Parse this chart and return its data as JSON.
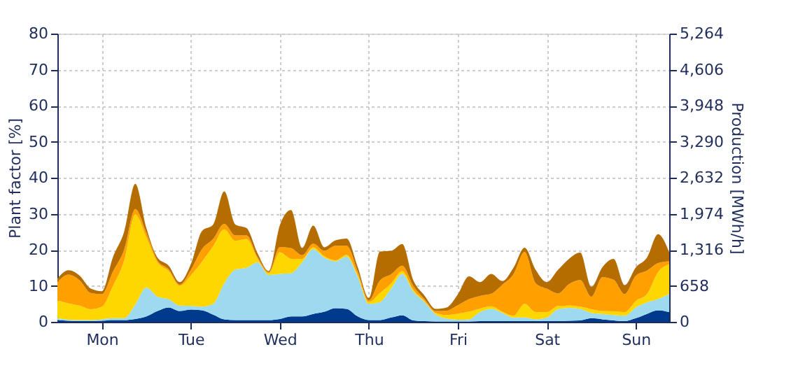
{
  "chart_data": {
    "type": "area",
    "stacked": true,
    "ylabel": "Plant factor [%]",
    "y2label": "Production [MWh/h]",
    "categories": [
      null,
      null,
      null,
      null,
      "Mon",
      null,
      null,
      null,
      null,
      null,
      null,
      null,
      "Tue",
      null,
      null,
      null,
      null,
      null,
      null,
      null,
      "Wed",
      null,
      null,
      null,
      null,
      null,
      null,
      null,
      "Thu",
      null,
      null,
      null,
      null,
      null,
      null,
      null,
      "Fri",
      null,
      null,
      null,
      null,
      null,
      null,
      null,
      "Sat",
      null,
      null,
      null,
      null,
      null,
      null,
      null,
      "Sun",
      null,
      null,
      null
    ],
    "ylim": [
      0,
      80
    ],
    "yticks": [
      0,
      10,
      20,
      30,
      40,
      50,
      60,
      70,
      80
    ],
    "y2lim": [
      0,
      5264
    ],
    "y2ticks": [
      0,
      658,
      {
        "value": 1316,
        "label": "1,316"
      },
      {
        "value": 1974,
        "label": "1,974"
      },
      {
        "value": 2632,
        "label": "2,632"
      },
      {
        "value": 3290,
        "label": "3,290"
      },
      {
        "value": 3948,
        "label": "3,948"
      },
      {
        "value": 4606,
        "label": "4,606"
      },
      {
        "value": 5264,
        "label": "5,264"
      }
    ],
    "grid": true,
    "legend": false,
    "series": [
      {
        "color": "#003a8c",
        "values": [
          0.5,
          0.3,
          0.2,
          0.2,
          0.3,
          0.5,
          0.5,
          0.8,
          1.5,
          3,
          4,
          3,
          3.4,
          3.2,
          2,
          0.7,
          0.5,
          0.5,
          0.5,
          0.5,
          0.8,
          1.5,
          1.5,
          2.2,
          2.8,
          3.8,
          3.6,
          1.5,
          0.5,
          0.5,
          1.2,
          1.8,
          0.4,
          0.2,
          0.1,
          0.1,
          0.1,
          0.1,
          0.2,
          0.2,
          0.2,
          0.2,
          0.2,
          0.2,
          0.2,
          0.2,
          0.3,
          0.4,
          1,
          0.7,
          0.4,
          0.2,
          1,
          2.2,
          3.2,
          2.7
        ]
      },
      {
        "color": "#9dd9ef",
        "values": [
          0.5,
          0.3,
          0.3,
          0.3,
          0.4,
          0.5,
          0.5,
          4,
          8,
          4,
          2.3,
          1.5,
          1,
          1,
          3,
          10,
          14,
          14.5,
          16,
          12.5,
          12.5,
          12,
          15,
          18,
          15,
          13,
          14.5,
          11,
          4.5,
          5,
          8,
          11.5,
          8,
          5.3,
          2,
          0.8,
          0.5,
          0.6,
          2.5,
          3.4,
          2.3,
          1,
          1,
          0.5,
          1,
          3.3,
          3.6,
          3.2,
          1.5,
          1.5,
          1.5,
          1.5,
          3,
          3.2,
          3.1,
          5
        ]
      },
      {
        "color": "#ffd700",
        "values": [
          5,
          4.5,
          4,
          3,
          3.5,
          9,
          16,
          25,
          14,
          9.5,
          7.8,
          5.5,
          8.5,
          12.5,
          16,
          15,
          8,
          8,
          1,
          0.5,
          6,
          4,
          1,
          0.5,
          0.4,
          0.3,
          0.5,
          0.5,
          0.5,
          2.5,
          1.5,
          0.8,
          0.5,
          0.3,
          0.4,
          1,
          1.7,
          2.1,
          1,
          0.7,
          0.3,
          0.5,
          3.8,
          2,
          1.5,
          0.9,
          0.6,
          0.6,
          1,
          0.8,
          1,
          1,
          1.8,
          2.3,
          7.5,
          8.3
        ]
      },
      {
        "color": "#ff9f00",
        "values": [
          5,
          8,
          7,
          4.5,
          3.5,
          4,
          3,
          1.5,
          1.2,
          0.5,
          0.5,
          0.3,
          1.5,
          3.5,
          2,
          1.5,
          1.5,
          1,
          0.5,
          0.3,
          1.5,
          3,
          1,
          1,
          1.5,
          4,
          2.5,
          1,
          0.5,
          3.5,
          2.5,
          1.5,
          1.1,
          0.5,
          0.5,
          1.2,
          2.3,
          3.5,
          3.5,
          3.5,
          7.5,
          11.5,
          14.4,
          8,
          6.5,
          3.5,
          6,
          7.4,
          3.5,
          9.4,
          8.8,
          5,
          7,
          6.5,
          2.5,
          0.8
        ]
      },
      {
        "color": "#b56d00",
        "values": [
          1,
          1.2,
          1.3,
          1.2,
          0.8,
          4,
          5,
          7,
          1.3,
          0.8,
          1,
          0.7,
          1.6,
          5,
          4,
          9,
          3,
          2,
          1,
          0.3,
          6,
          10.5,
          2,
          5,
          1,
          1.5,
          2,
          1.2,
          0.6,
          8,
          6.5,
          6,
          1.5,
          1,
          0.6,
          0.9,
          3,
          6.3,
          3.8,
          5.5,
          1,
          1.8,
          1.2,
          3.7,
          1.8,
          6.5,
          7,
          7.6,
          2.7,
          2.8,
          5.8,
          2.5,
          2.3,
          3.6,
          8,
          2.5
        ]
      }
    ]
  }
}
